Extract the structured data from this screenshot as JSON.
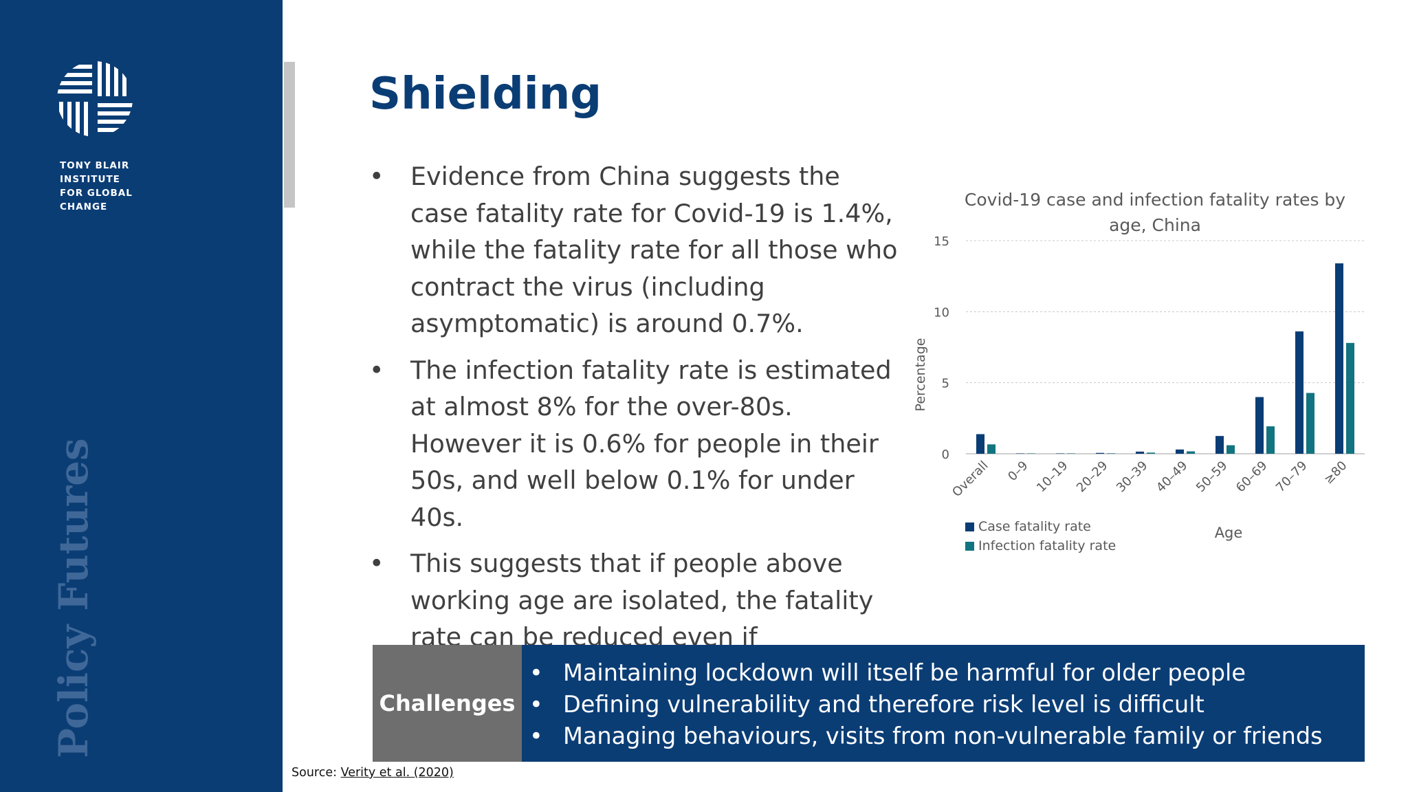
{
  "sidebar": {
    "org_name": [
      "TONY BLAIR",
      "INSTITUTE",
      "FOR GLOBAL",
      "CHANGE"
    ],
    "vertical_brand": "Policy Futures",
    "logo_icon": "tbi-woven-logo-icon"
  },
  "colors": {
    "navy": "#0b3d75",
    "teal": "#117480",
    "grey_box": "#6e6e6e",
    "body_text": "#404040"
  },
  "title": "Shielding",
  "bullets": [
    "Evidence from China suggests the case fatality rate for Covid-19 is 1.4%, while the fatality rate for all those who contract the virus (including asymptomatic) is around 0.7%.",
    "The infection fatality rate is estimated at almost 8% for the over-80s. However it is 0.6% for people in their 50s, and well below 0.1% for under 40s.",
    "This suggests that if people above working age are isolated, the fatality rate can be reduced even if containment fails."
  ],
  "chart_data": {
    "type": "bar",
    "title": "Covid-19 case and infection fatality rates by age, China",
    "xlabel": "Age",
    "ylabel": "Percentage",
    "categories": [
      "Overall",
      "0–9",
      "10–19",
      "20–29",
      "30–39",
      "40–49",
      "50–59",
      "60–69",
      "70–79",
      "≥80"
    ],
    "series": [
      {
        "name": "Case fatality rate",
        "color": "#0b3d75",
        "values": [
          1.38,
          0.003,
          0.01,
          0.06,
          0.15,
          0.3,
          1.25,
          3.99,
          8.61,
          13.4
        ]
      },
      {
        "name": "Infection fatality rate",
        "color": "#117480",
        "values": [
          0.66,
          0.002,
          0.007,
          0.03,
          0.08,
          0.17,
          0.6,
          1.93,
          4.28,
          7.8
        ]
      }
    ],
    "yticks": [
      0,
      5,
      10,
      15
    ],
    "ylim": [
      0,
      15
    ],
    "grid": true,
    "legend": "bottom-left"
  },
  "challenges": {
    "label": "Challenges",
    "items": [
      "Maintaining lockdown will itself be harmful for older people",
      "Defining vulnerability and therefore risk level is difficult",
      "Managing behaviours, visits from non-vulnerable family or friends"
    ]
  },
  "source": {
    "prefix": "Source: ",
    "link_text": "Verity et al. (2020)"
  },
  "bullet_glyph": "•"
}
